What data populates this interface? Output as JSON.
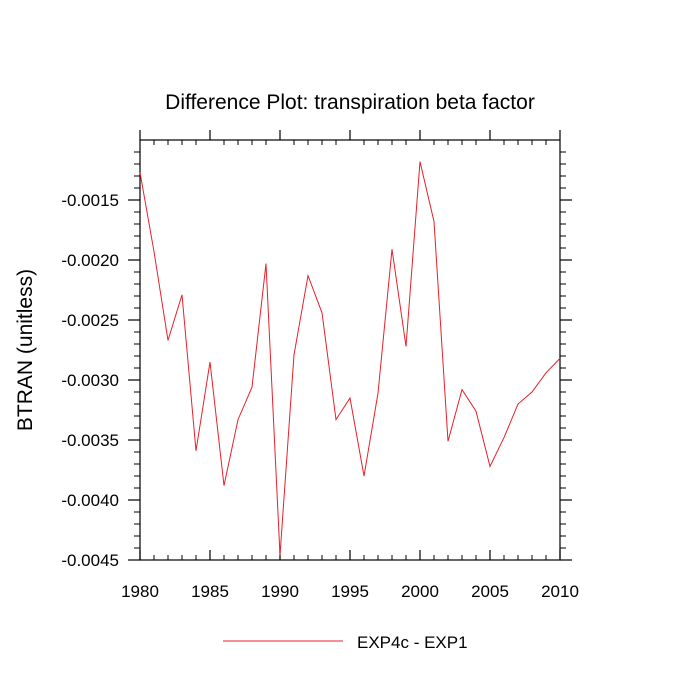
{
  "chart_data": {
    "type": "line",
    "title": "Difference Plot: transpiration beta factor",
    "xlabel": "",
    "ylabel": "BTRAN  (unitless)",
    "xlim": [
      1980,
      2010
    ],
    "ylim": [
      -0.0045,
      -0.001
    ],
    "x_ticks": [
      1980,
      1985,
      1990,
      1995,
      2000,
      2005,
      2010
    ],
    "x_tick_labels": [
      "1980",
      "1985",
      "1990",
      "1995",
      "2000",
      "2005",
      "2010"
    ],
    "y_ticks": [
      -0.0015,
      -0.002,
      -0.0025,
      -0.003,
      -0.0035,
      -0.004,
      -0.0045
    ],
    "y_tick_labels": [
      "-0.0015",
      "-0.0020",
      "-0.0025",
      "-0.0030",
      "-0.0035",
      "-0.0040",
      "-0.0045"
    ],
    "grid": false,
    "legend_position": "bottom-center",
    "series": [
      {
        "name": "EXP4c - EXP1",
        "color": "#e8202a",
        "x": [
          1980,
          1981,
          1982,
          1983,
          1984,
          1985,
          1986,
          1987,
          1988,
          1989,
          1990,
          1991,
          1992,
          1993,
          1994,
          1995,
          1996,
          1997,
          1998,
          1999,
          2000,
          2001,
          2002,
          2003,
          2004,
          2005,
          2006,
          2007,
          2008,
          2009,
          2010
        ],
        "values": [
          -0.00127,
          -0.00193,
          -0.00267,
          -0.00229,
          -0.00359,
          -0.00285,
          -0.00388,
          -0.00333,
          -0.00306,
          -0.00203,
          -0.00446,
          -0.00279,
          -0.00213,
          -0.00244,
          -0.00333,
          -0.00315,
          -0.0038,
          -0.00311,
          -0.00191,
          -0.00272,
          -0.00118,
          -0.00168,
          -0.00351,
          -0.00308,
          -0.00326,
          -0.00372,
          -0.00348,
          -0.0032,
          -0.0031,
          -0.00294,
          -0.00282
        ]
      }
    ]
  }
}
